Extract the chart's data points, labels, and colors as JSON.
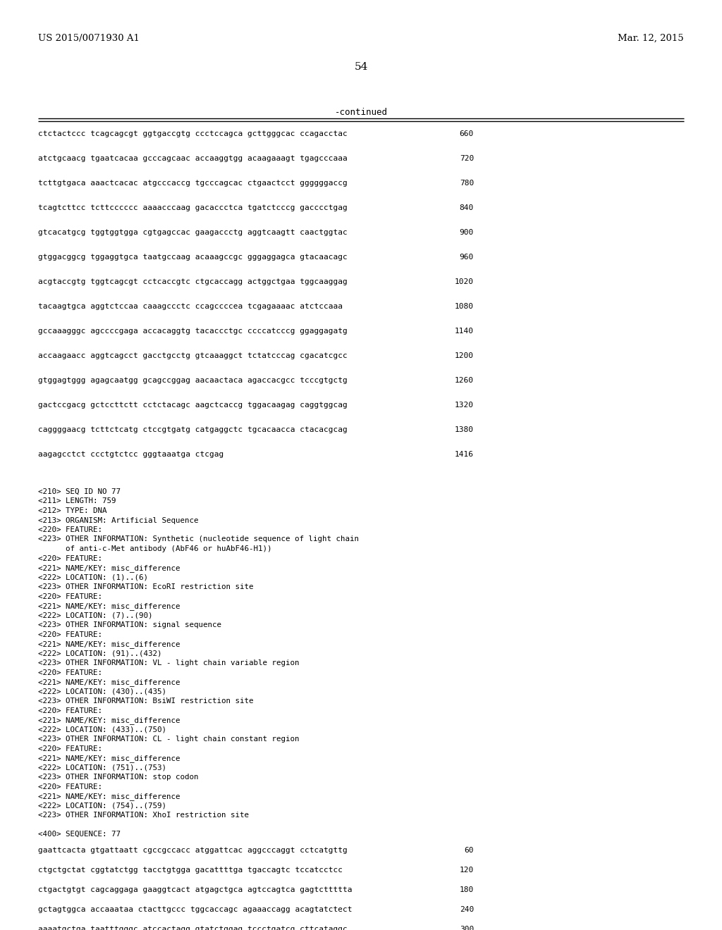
{
  "header_left": "US 2015/0071930 A1",
  "header_right": "Mar. 12, 2015",
  "page_number": "54",
  "continued_label": "-continued",
  "background_color": "#ffffff",
  "text_color": "#000000",
  "sequence_lines": [
    [
      "ctctactccc tcagcagcgt ggtgaccgtg ccctccagca gcttgggcac ccagacctac",
      "660"
    ],
    [
      "atctgcaacg tgaatcacaa gcccagcaac accaaggtgg acaagaaagt tgagcccaaa",
      "720"
    ],
    [
      "tcttgtgaca aaactcacac atgcccaccg tgcccagcac ctgaactcct ggggggaccg",
      "780"
    ],
    [
      "tcagtcttcc tcttcccccc aaaacccaag gacaccctca tgatctcccg gacccctgag",
      "840"
    ],
    [
      "gtcacatgcg tggtggtgga cgtgagccac gaagaccctg aggtcaagtt caactggtac",
      "900"
    ],
    [
      "gtggacggcg tggaggtgca taatgccaag acaaagccgc gggaggagca gtacaacagc",
      "960"
    ],
    [
      "acgtaccgtg tggtcagcgt cctcaccgtc ctgcaccagg actggctgaa tggcaaggag",
      "1020"
    ],
    [
      "tacaagtgca aggtctccaa caaagccctc ccagccccea tcgagaaaac atctccaaa",
      "1080"
    ],
    [
      "gccaaagggc agccccgaga accacaggtg tacaccctgc ccccatcccg ggaggagatg",
      "1140"
    ],
    [
      "accaagaacc aggtcagcct gacctgcctg gtcaaaggct tctatcccag cgacatcgcc",
      "1200"
    ],
    [
      "gtggagtggg agagcaatgg gcagccggag aacaactaca agaccacgcc tcccgtgctg",
      "1260"
    ],
    [
      "gactccgacg gctccttctt cctctacagc aagctcaccg tggacaagag caggtggcag",
      "1320"
    ],
    [
      "caggggaacg tcttctcatg ctccgtgatg catgaggctc tgcacaacca ctacacgcag",
      "1380"
    ],
    [
      "aagagcctct ccctgtctcc gggtaaatga ctcgag",
      "1416"
    ]
  ],
  "annotation_lines": [
    "<210> SEQ ID NO 77",
    "<211> LENGTH: 759",
    "<212> TYPE: DNA",
    "<213> ORGANISM: Artificial Sequence",
    "<220> FEATURE:",
    "<223> OTHER INFORMATION: Synthetic (nucleotide sequence of light chain",
    "      of anti-c-Met antibody (AbF46 or huAbF46-H1))",
    "<220> FEATURE:",
    "<221> NAME/KEY: misc_difference",
    "<222> LOCATION: (1)..(6)",
    "<223> OTHER INFORMATION: EcoRI restriction site",
    "<220> FEATURE:",
    "<221> NAME/KEY: misc_difference",
    "<222> LOCATION: (7)..(90)",
    "<223> OTHER INFORMATION: signal sequence",
    "<220> FEATURE:",
    "<221> NAME/KEY: misc_difference",
    "<222> LOCATION: (91)..(432)",
    "<223> OTHER INFORMATION: VL - light chain variable region",
    "<220> FEATURE:",
    "<221> NAME/KEY: misc_difference",
    "<222> LOCATION: (430)..(435)",
    "<223> OTHER INFORMATION: BsiWI restriction site",
    "<220> FEATURE:",
    "<221> NAME/KEY: misc_difference",
    "<222> LOCATION: (433)..(750)",
    "<223> OTHER INFORMATION: CL - light chain constant region",
    "<220> FEATURE:",
    "<221> NAME/KEY: misc_difference",
    "<222> LOCATION: (751)..(753)",
    "<223> OTHER INFORMATION: stop codon",
    "<220> FEATURE:",
    "<221> NAME/KEY: misc_difference",
    "<222> LOCATION: (754)..(759)",
    "<223> OTHER INFORMATION: XhoI restriction site"
  ],
  "sequence400_header": "<400> SEQUENCE: 77",
  "sequence400_lines": [
    [
      "gaattcacta gtgattaatt cgccgccacc atggattcac aggcccaggt cctcatgttg",
      "60"
    ],
    [
      "ctgctgctat cggtatctgg tacctgtgga gacattttga tgaccagtc tccatcctcc",
      "120"
    ],
    [
      "ctgactgtgt cagcaggaga gaaggtcact atgagctgca agtccagtca gagtcttttta",
      "180"
    ],
    [
      "gctagtggca accaaataa ctacttgccc tggcaccagc agaaaccagg acagtatctect",
      "240"
    ],
    [
      "aaaatgctga taatttgggc atccactagg gtatctggag tccctgatcg cttcataggc",
      "300"
    ]
  ]
}
